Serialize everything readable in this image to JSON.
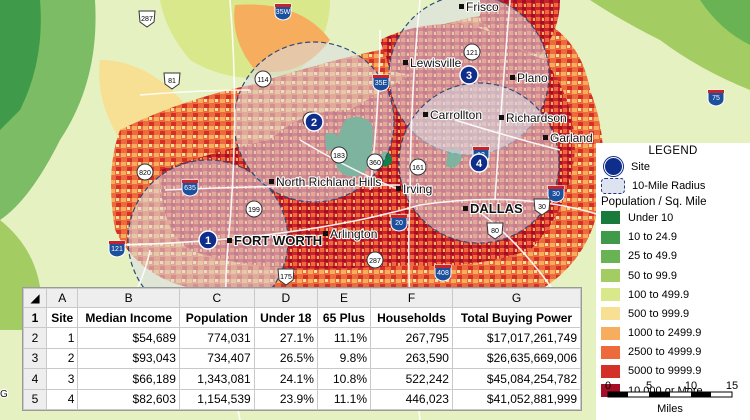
{
  "map": {
    "cities": [
      "Frisco",
      "Lewisville",
      "Plano",
      "Carrollton",
      "Richardson",
      "Garland",
      "North Richland Hills",
      "Irving",
      "DALLAS",
      "FORT WORTH",
      "Arlington",
      "Mesq"
    ],
    "highways": [
      "287",
      "35W",
      "35E",
      "121",
      "81",
      "114",
      "121",
      "75",
      "30",
      "183",
      "360",
      "161",
      "12",
      "635",
      "820",
      "199",
      "121",
      "20",
      "30",
      "80",
      "175",
      "287",
      "408",
      "20",
      "20"
    ],
    "sites": [
      "1",
      "2",
      "3",
      "4"
    ],
    "stray_label": "G"
  },
  "legend": {
    "title": "LEGEND",
    "site_label": "Site",
    "radius_label": "10-Mile Radius",
    "density_title": "Population / Sq. Mile",
    "classes": [
      {
        "label": "Under 10",
        "color": "#1a7a3c"
      },
      {
        "label": "10 to 24.9",
        "color": "#3f9b4a"
      },
      {
        "label": "25 to 49.9",
        "color": "#69b355"
      },
      {
        "label": "50 to 99.9",
        "color": "#a3cc63"
      },
      {
        "label": "100 to 499.9",
        "color": "#d8e88a"
      },
      {
        "label": "500 to 999.9",
        "color": "#f7df93"
      },
      {
        "label": "1000 to 2499.9",
        "color": "#f6ad5e"
      },
      {
        "label": "2500 to 4999.9",
        "color": "#ec6a3c"
      },
      {
        "label": "5000 to 9999.9",
        "color": "#d33127"
      },
      {
        "label": "10,000 or More",
        "color": "#a50e27"
      }
    ],
    "scale": {
      "ticks": [
        "0",
        "5",
        "10",
        "15"
      ],
      "unit": "Miles"
    }
  },
  "colors": {
    "site_marker": "#0f2d8a",
    "radius_fill": "#d9dde6",
    "radius_stroke": "#2f4a78",
    "water": "#11804a",
    "interstate": "#1c4f9c"
  },
  "sheet": {
    "columns": [
      "A",
      "B",
      "C",
      "D",
      "E",
      "F",
      "G"
    ],
    "row_numbers": [
      "1",
      "2",
      "3",
      "4",
      "5"
    ],
    "headers": [
      "Site",
      "Median Income",
      "Population",
      "Under 18",
      "65 Plus",
      "Households",
      "Total Buying Power"
    ],
    "rows": [
      [
        "1",
        "$54,689",
        "774,031",
        "27.1%",
        "11.1%",
        "267,795",
        "$17,017,261,749"
      ],
      [
        "2",
        "$93,043",
        "734,407",
        "26.5%",
        "9.8%",
        "263,590",
        "$26,635,669,006"
      ],
      [
        "3",
        "$66,189",
        "1,343,081",
        "24.1%",
        "10.8%",
        "522,242",
        "$45,084,254,782"
      ],
      [
        "4",
        "$82,603",
        "1,154,539",
        "23.9%",
        "11.1%",
        "446,023",
        "$41,052,881,999"
      ]
    ]
  }
}
